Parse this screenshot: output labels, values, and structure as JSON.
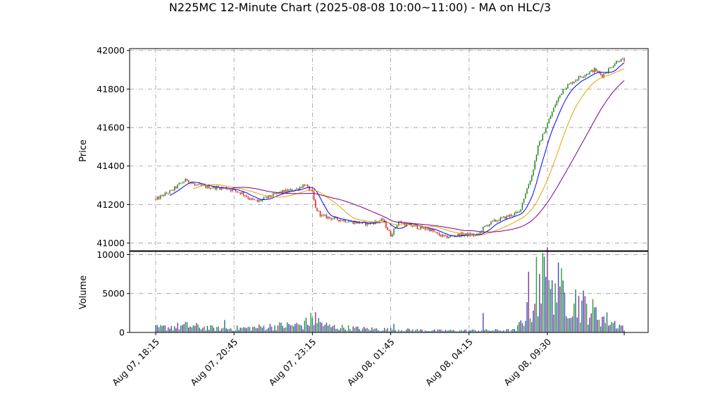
{
  "chart_data": {
    "type": "candlestick",
    "title": "N225MC 12-Minute Chart (2025-08-08 10:00~11:00) - MA on HLC/3",
    "price_panel": {
      "ylabel": "Price",
      "ylim": [
        40960,
        42010
      ],
      "yticks": [
        41000,
        41200,
        41400,
        41600,
        41800,
        42000
      ],
      "grid": true
    },
    "volume_panel": {
      "ylabel": "Volume",
      "ylim": [
        0,
        10400
      ],
      "yticks": [
        0,
        5000,
        10000
      ],
      "grid": true
    },
    "x_tick_labels": [
      "Aug 07, 18:15",
      "Aug 07, 20:45",
      "Aug 07, 23:15",
      "Aug 08, 01:45",
      "Aug 08, 04:15",
      "Aug 08, 09:30"
    ],
    "x_tick_index": [
      0,
      50,
      100,
      150,
      200,
      250
    ],
    "bar_count": 300,
    "price_anchors": [
      [
        0,
        41225
      ],
      [
        5,
        41250
      ],
      [
        10,
        41270
      ],
      [
        15,
        41305
      ],
      [
        20,
        41330
      ],
      [
        25,
        41300
      ],
      [
        35,
        41290
      ],
      [
        45,
        41285
      ],
      [
        55,
        41260
      ],
      [
        60,
        41230
      ],
      [
        65,
        41215
      ],
      [
        72,
        41240
      ],
      [
        80,
        41265
      ],
      [
        90,
        41280
      ],
      [
        95,
        41305
      ],
      [
        100,
        41260
      ],
      [
        102,
        41180
      ],
      [
        106,
        41140
      ],
      [
        115,
        41125
      ],
      [
        125,
        41110
      ],
      [
        135,
        41100
      ],
      [
        145,
        41120
      ],
      [
        150,
        41040
      ],
      [
        155,
        41110
      ],
      [
        165,
        41085
      ],
      [
        175,
        41070
      ],
      [
        180,
        41045
      ],
      [
        185,
        41030
      ],
      [
        195,
        41045
      ],
      [
        205,
        41040
      ],
      [
        210,
        41085
      ],
      [
        215,
        41110
      ],
      [
        220,
        41125
      ],
      [
        225,
        41140
      ],
      [
        232,
        41160
      ],
      [
        236,
        41260
      ],
      [
        240,
        41350
      ],
      [
        244,
        41500
      ],
      [
        250,
        41620
      ],
      [
        255,
        41720
      ],
      [
        260,
        41800
      ],
      [
        270,
        41860
      ],
      [
        275,
        41880
      ],
      [
        280,
        41900
      ],
      [
        285,
        41870
      ],
      [
        290,
        41910
      ],
      [
        295,
        41950
      ],
      [
        300,
        41950
      ]
    ],
    "volume_profile": [
      [
        0,
        600
      ],
      [
        20,
        900
      ],
      [
        40,
        500
      ],
      [
        60,
        600
      ],
      [
        80,
        900
      ],
      [
        95,
        1000
      ],
      [
        100,
        1800
      ],
      [
        110,
        800
      ],
      [
        130,
        500
      ],
      [
        150,
        400
      ],
      [
        180,
        250
      ],
      [
        230,
        300
      ],
      [
        235,
        2000
      ],
      [
        245,
        4500
      ],
      [
        250,
        8000
      ],
      [
        258,
        5500
      ],
      [
        270,
        4000
      ],
      [
        285,
        2000
      ],
      [
        300,
        600
      ]
    ],
    "volume_spikes": [
      [
        209,
        2500
      ],
      [
        238,
        7800
      ],
      [
        241,
        2800
      ],
      [
        243,
        9700
      ],
      [
        245,
        7500
      ],
      [
        247,
        10200
      ],
      [
        251,
        6700
      ],
      [
        253,
        6700
      ],
      [
        258,
        5900
      ],
      [
        102,
        2600
      ],
      [
        96,
        1900
      ],
      [
        44,
        1600
      ],
      [
        152,
        1100
      ]
    ],
    "ma_series": [
      {
        "period": 10,
        "color": "#0000ff"
      },
      {
        "period": 25,
        "color": "#e8a000"
      },
      {
        "period": 50,
        "color": "#800080"
      }
    ],
    "colors": {
      "up": "#1a7f1a",
      "down": "#e81010",
      "volume": [
        "#1a7f7a",
        "#4a4abf",
        "#8a3a8a",
        "#3a9a3a"
      ]
    }
  }
}
